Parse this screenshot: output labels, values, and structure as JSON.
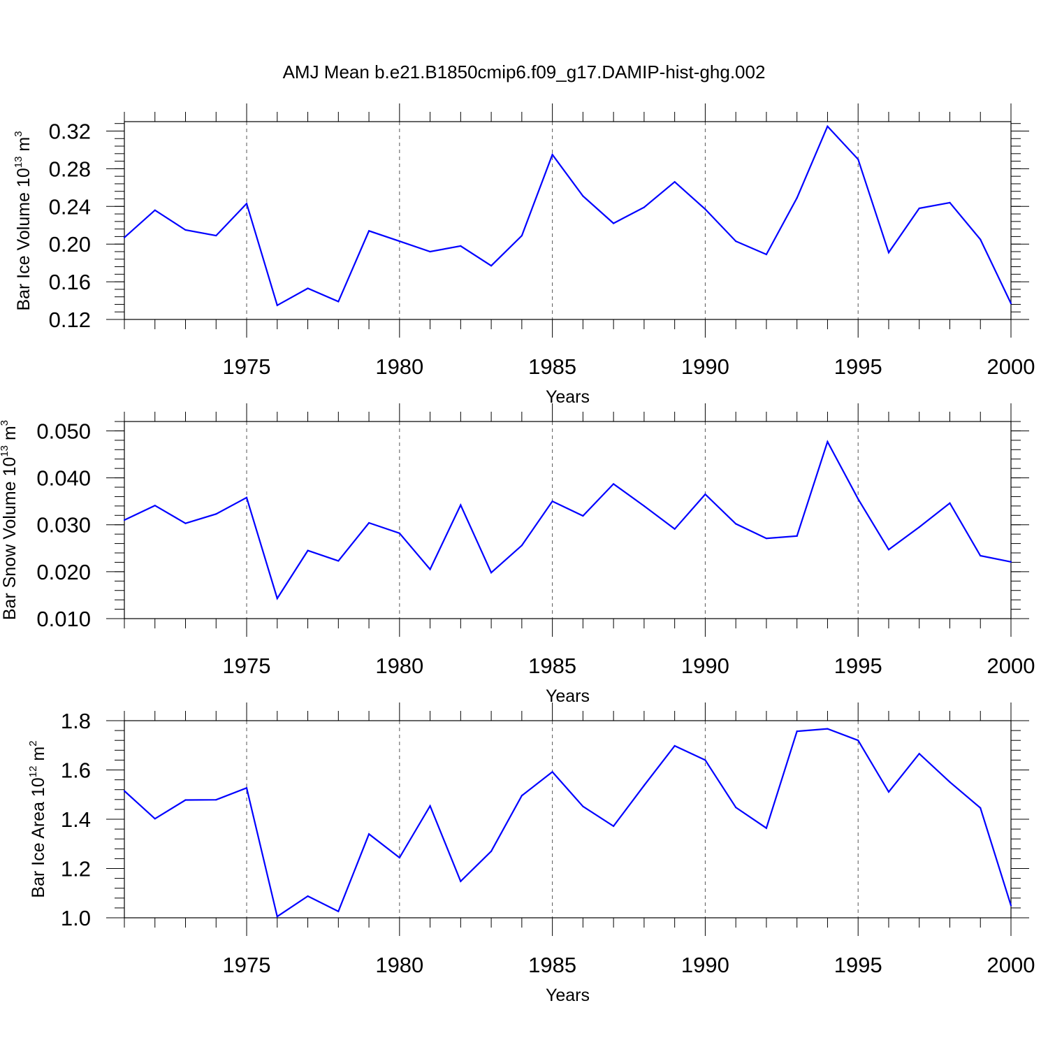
{
  "title": "AMJ Mean b.e21.B1850cmip6.f09_g17.DAMIP-hist-ghg.002",
  "colors": {
    "series": "#0000ff",
    "axis": "#000000",
    "grid": "#555555"
  },
  "chart_data": [
    {
      "type": "line",
      "xlabel": "Years",
      "ylabel": {
        "prefix": "Bar Ice Volume 10",
        "exp1": "13",
        "mid": " m",
        "exp2": "3"
      },
      "xlim": [
        1971,
        2000
      ],
      "ylim": [
        0.12,
        0.33
      ],
      "x_ticks": [
        "1975",
        "1980",
        "1985",
        "1990",
        "1995",
        "2000"
      ],
      "y_ticks": [
        "0.12",
        "0.16",
        "0.20",
        "0.24",
        "0.28",
        "0.32"
      ],
      "y_minor_step": 0.008,
      "grid": "vertical dashed at major x ticks",
      "x": [
        1971,
        1972,
        1973,
        1974,
        1975,
        1976,
        1977,
        1978,
        1979,
        1980,
        1981,
        1982,
        1983,
        1984,
        1985,
        1986,
        1987,
        1988,
        1989,
        1990,
        1991,
        1992,
        1993,
        1994,
        1995,
        1996,
        1997,
        1998,
        1999,
        2000
      ],
      "series": [
        {
          "values": [
            0.207,
            0.236,
            0.215,
            0.209,
            0.243,
            0.135,
            0.153,
            0.139,
            0.214,
            0.203,
            0.192,
            0.198,
            0.177,
            0.209,
            0.295,
            0.251,
            0.222,
            0.239,
            0.266,
            0.237,
            0.203,
            0.189,
            0.249,
            0.325,
            0.29,
            0.191,
            0.238,
            0.244,
            0.205,
            0.137
          ]
        }
      ]
    },
    {
      "type": "line",
      "xlabel": "Years",
      "ylabel": {
        "prefix": "Bar Snow Volume 10",
        "exp1": "13",
        "mid": " m",
        "exp2": "3"
      },
      "xlim": [
        1971,
        2000
      ],
      "ylim": [
        0.01,
        0.052
      ],
      "x_ticks": [
        "1975",
        "1980",
        "1985",
        "1990",
        "1995",
        "2000"
      ],
      "y_ticks": [
        "0.010",
        "0.020",
        "0.030",
        "0.040",
        "0.050"
      ],
      "y_minor_step": 0.002,
      "grid": "vertical dashed at major x ticks",
      "x": [
        1971,
        1972,
        1973,
        1974,
        1975,
        1976,
        1977,
        1978,
        1979,
        1980,
        1981,
        1982,
        1983,
        1984,
        1985,
        1986,
        1987,
        1988,
        1989,
        1990,
        1991,
        1992,
        1993,
        1994,
        1995,
        1996,
        1997,
        1998,
        1999,
        2000
      ],
      "series": [
        {
          "values": [
            0.031,
            0.0341,
            0.0303,
            0.0323,
            0.0358,
            0.0143,
            0.0245,
            0.0223,
            0.0304,
            0.0282,
            0.0205,
            0.0342,
            0.0198,
            0.0256,
            0.035,
            0.0319,
            0.0387,
            0.034,
            0.0291,
            0.0365,
            0.0302,
            0.0271,
            0.0276,
            0.0477,
            0.0355,
            0.0247,
            0.0295,
            0.0346,
            0.0234,
            0.0221
          ]
        }
      ]
    },
    {
      "type": "line",
      "xlabel": "Years",
      "ylabel": {
        "prefix": "Bar Ice Area 10",
        "exp1": "12",
        "mid": " m",
        "exp2": "2"
      },
      "xlim": [
        1971,
        2000
      ],
      "ylim": [
        1.0,
        1.8
      ],
      "x_ticks": [
        "1975",
        "1980",
        "1985",
        "1990",
        "1995",
        "2000"
      ],
      "y_ticks": [
        "1.0",
        "1.2",
        "1.4",
        "1.6",
        "1.8"
      ],
      "y_minor_step": 0.04,
      "grid": "vertical dashed at major x ticks",
      "x": [
        1971,
        1972,
        1973,
        1974,
        1975,
        1976,
        1977,
        1978,
        1979,
        1980,
        1981,
        1982,
        1983,
        1984,
        1985,
        1986,
        1987,
        1988,
        1989,
        1990,
        1991,
        1992,
        1993,
        1994,
        1995,
        1996,
        1997,
        1998,
        1999,
        2000
      ],
      "series": [
        {
          "values": [
            1.515,
            1.402,
            1.478,
            1.479,
            1.527,
            1.005,
            1.088,
            1.026,
            1.34,
            1.244,
            1.454,
            1.148,
            1.27,
            1.496,
            1.592,
            1.452,
            1.372,
            1.537,
            1.698,
            1.64,
            1.448,
            1.364,
            1.757,
            1.767,
            1.72,
            1.511,
            1.666,
            1.551,
            1.446,
            1.05
          ]
        }
      ]
    }
  ]
}
